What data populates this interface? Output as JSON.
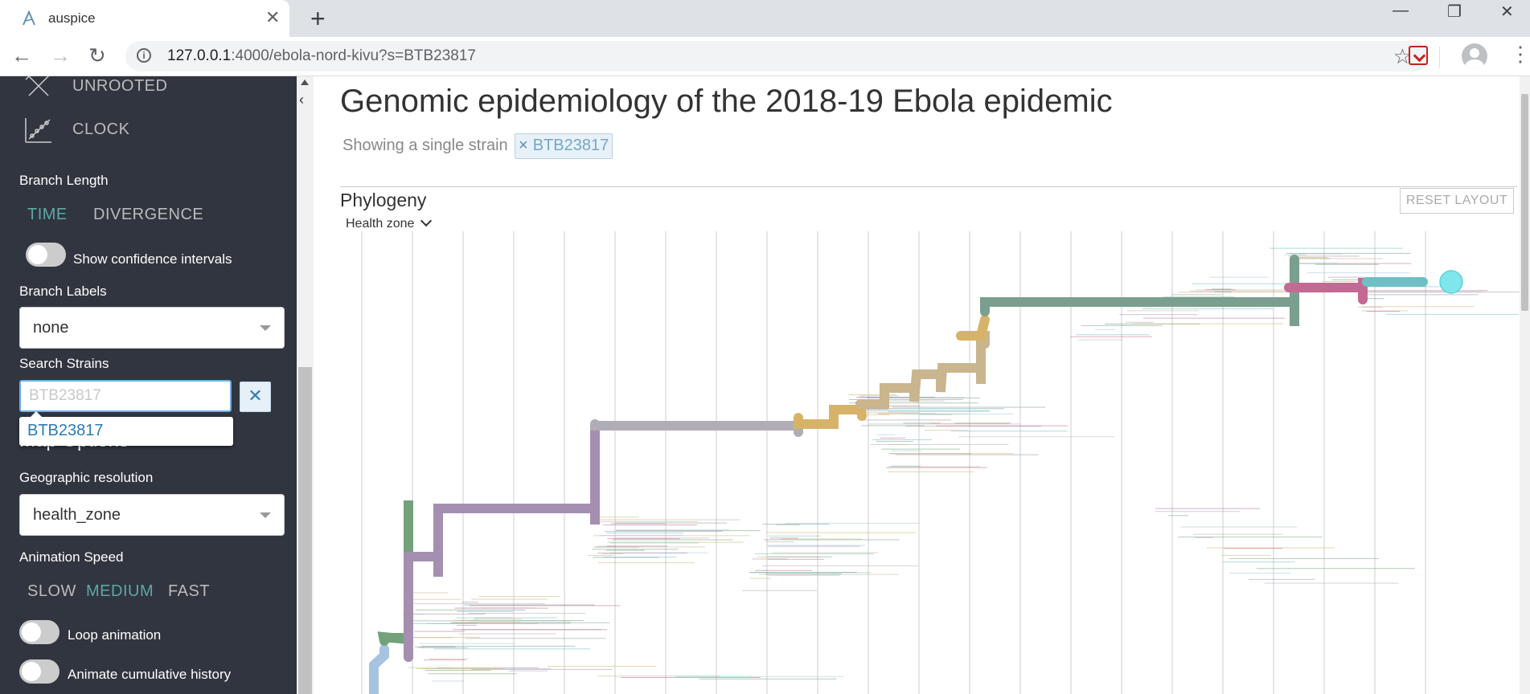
{
  "browser": {
    "tab_title": "auspice",
    "tab_close": "✕",
    "new_tab": "+",
    "url_host": "127.0.0.1",
    "url_rest": ":4000/ebola-nord-kivu?s=BTB23817",
    "back": "←",
    "forward": "→",
    "reload": "↻",
    "star": "☆",
    "menu": "⋮",
    "window_controls": {
      "minimize": "—",
      "restore": "❐",
      "close": "✕"
    }
  },
  "sidebar": {
    "layouts": [
      {
        "label": "UNROOTED",
        "icon": "unrooted-tree-icon"
      },
      {
        "label": "CLOCK",
        "icon": "clock-tree-icon"
      }
    ],
    "branch_length": {
      "label": "Branch Length",
      "options": [
        "TIME",
        "DIVERGENCE"
      ],
      "selected": "TIME"
    },
    "confidence_toggle": {
      "label": "Show confidence intervals",
      "on": false
    },
    "branch_labels": {
      "label": "Branch Labels",
      "value": "none"
    },
    "search": {
      "label": "Search Strains",
      "value": "BTB23817",
      "clear": "✕",
      "suggestion": "BTB23817"
    },
    "map_options_heading": "Map Options",
    "geo_resolution": {
      "label": "Geographic resolution",
      "value": "health_zone"
    },
    "animation_speed": {
      "label": "Animation Speed",
      "options": [
        "SLOW",
        "MEDIUM",
        "FAST"
      ],
      "selected": "MEDIUM"
    },
    "loop_toggle": {
      "label": "Loop animation",
      "on": false
    },
    "cumulative_toggle": {
      "label": "Animate cumulative history",
      "on": false
    }
  },
  "main": {
    "collapse_arrow": "‹",
    "title": "Genomic epidemiology of the 2018-19 Ebola epidemic",
    "subtitle": "Showing a single strain",
    "filter_chip": {
      "remove": "×",
      "label": "BTB23817"
    },
    "panel_title": "Phylogeny",
    "reset_button": "RESET LAYOUT",
    "color_by": "Health zone"
  },
  "colors": {
    "sidebar_bg": "#30353f",
    "selected_option": "#5da8a3",
    "chip_text": "#75a6c8",
    "highlight_tip": "#7fe6ec",
    "branch_colors": [
      "#a6c4e0",
      "#73a27a",
      "#a58fb0",
      "#b0adb6",
      "#d7b36a",
      "#c9b58e",
      "#c26a94",
      "#6fbfc4",
      "#7a9f8f"
    ]
  }
}
